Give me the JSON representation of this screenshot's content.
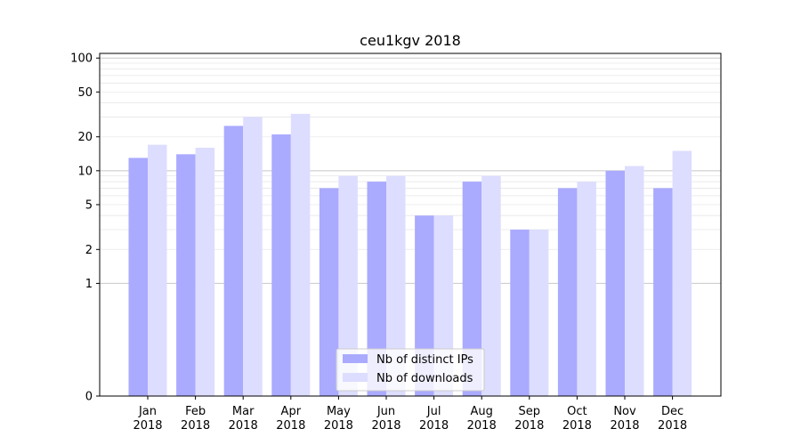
{
  "chart_data": {
    "type": "bar",
    "title": "ceu1kgv 2018",
    "xlabel": "",
    "ylabel": "",
    "y_scale": "symlog",
    "y_ticks": [
      0,
      1,
      2,
      5,
      10,
      20,
      50,
      100
    ],
    "ylim": [
      0,
      110
    ],
    "grid": "horizontal",
    "legend_position": "bottom-center",
    "categories": [
      "Jan\n2018",
      "Feb\n2018",
      "Mar\n2018",
      "Apr\n2018",
      "May\n2018",
      "Jun\n2018",
      "Jul\n2018",
      "Aug\n2018",
      "Sep\n2018",
      "Oct\n2018",
      "Nov\n2018",
      "Dec\n2018"
    ],
    "series": [
      {
        "name": "Nb of distinct IPs",
        "color": "#aaaaff",
        "values": [
          13,
          14,
          25,
          21,
          7,
          8,
          4,
          8,
          3,
          7,
          10,
          7
        ]
      },
      {
        "name": "Nb of downloads",
        "color": "#ddddff",
        "values": [
          17,
          16,
          30,
          32,
          9,
          9,
          4,
          9,
          3,
          8,
          11,
          15
        ]
      }
    ]
  }
}
